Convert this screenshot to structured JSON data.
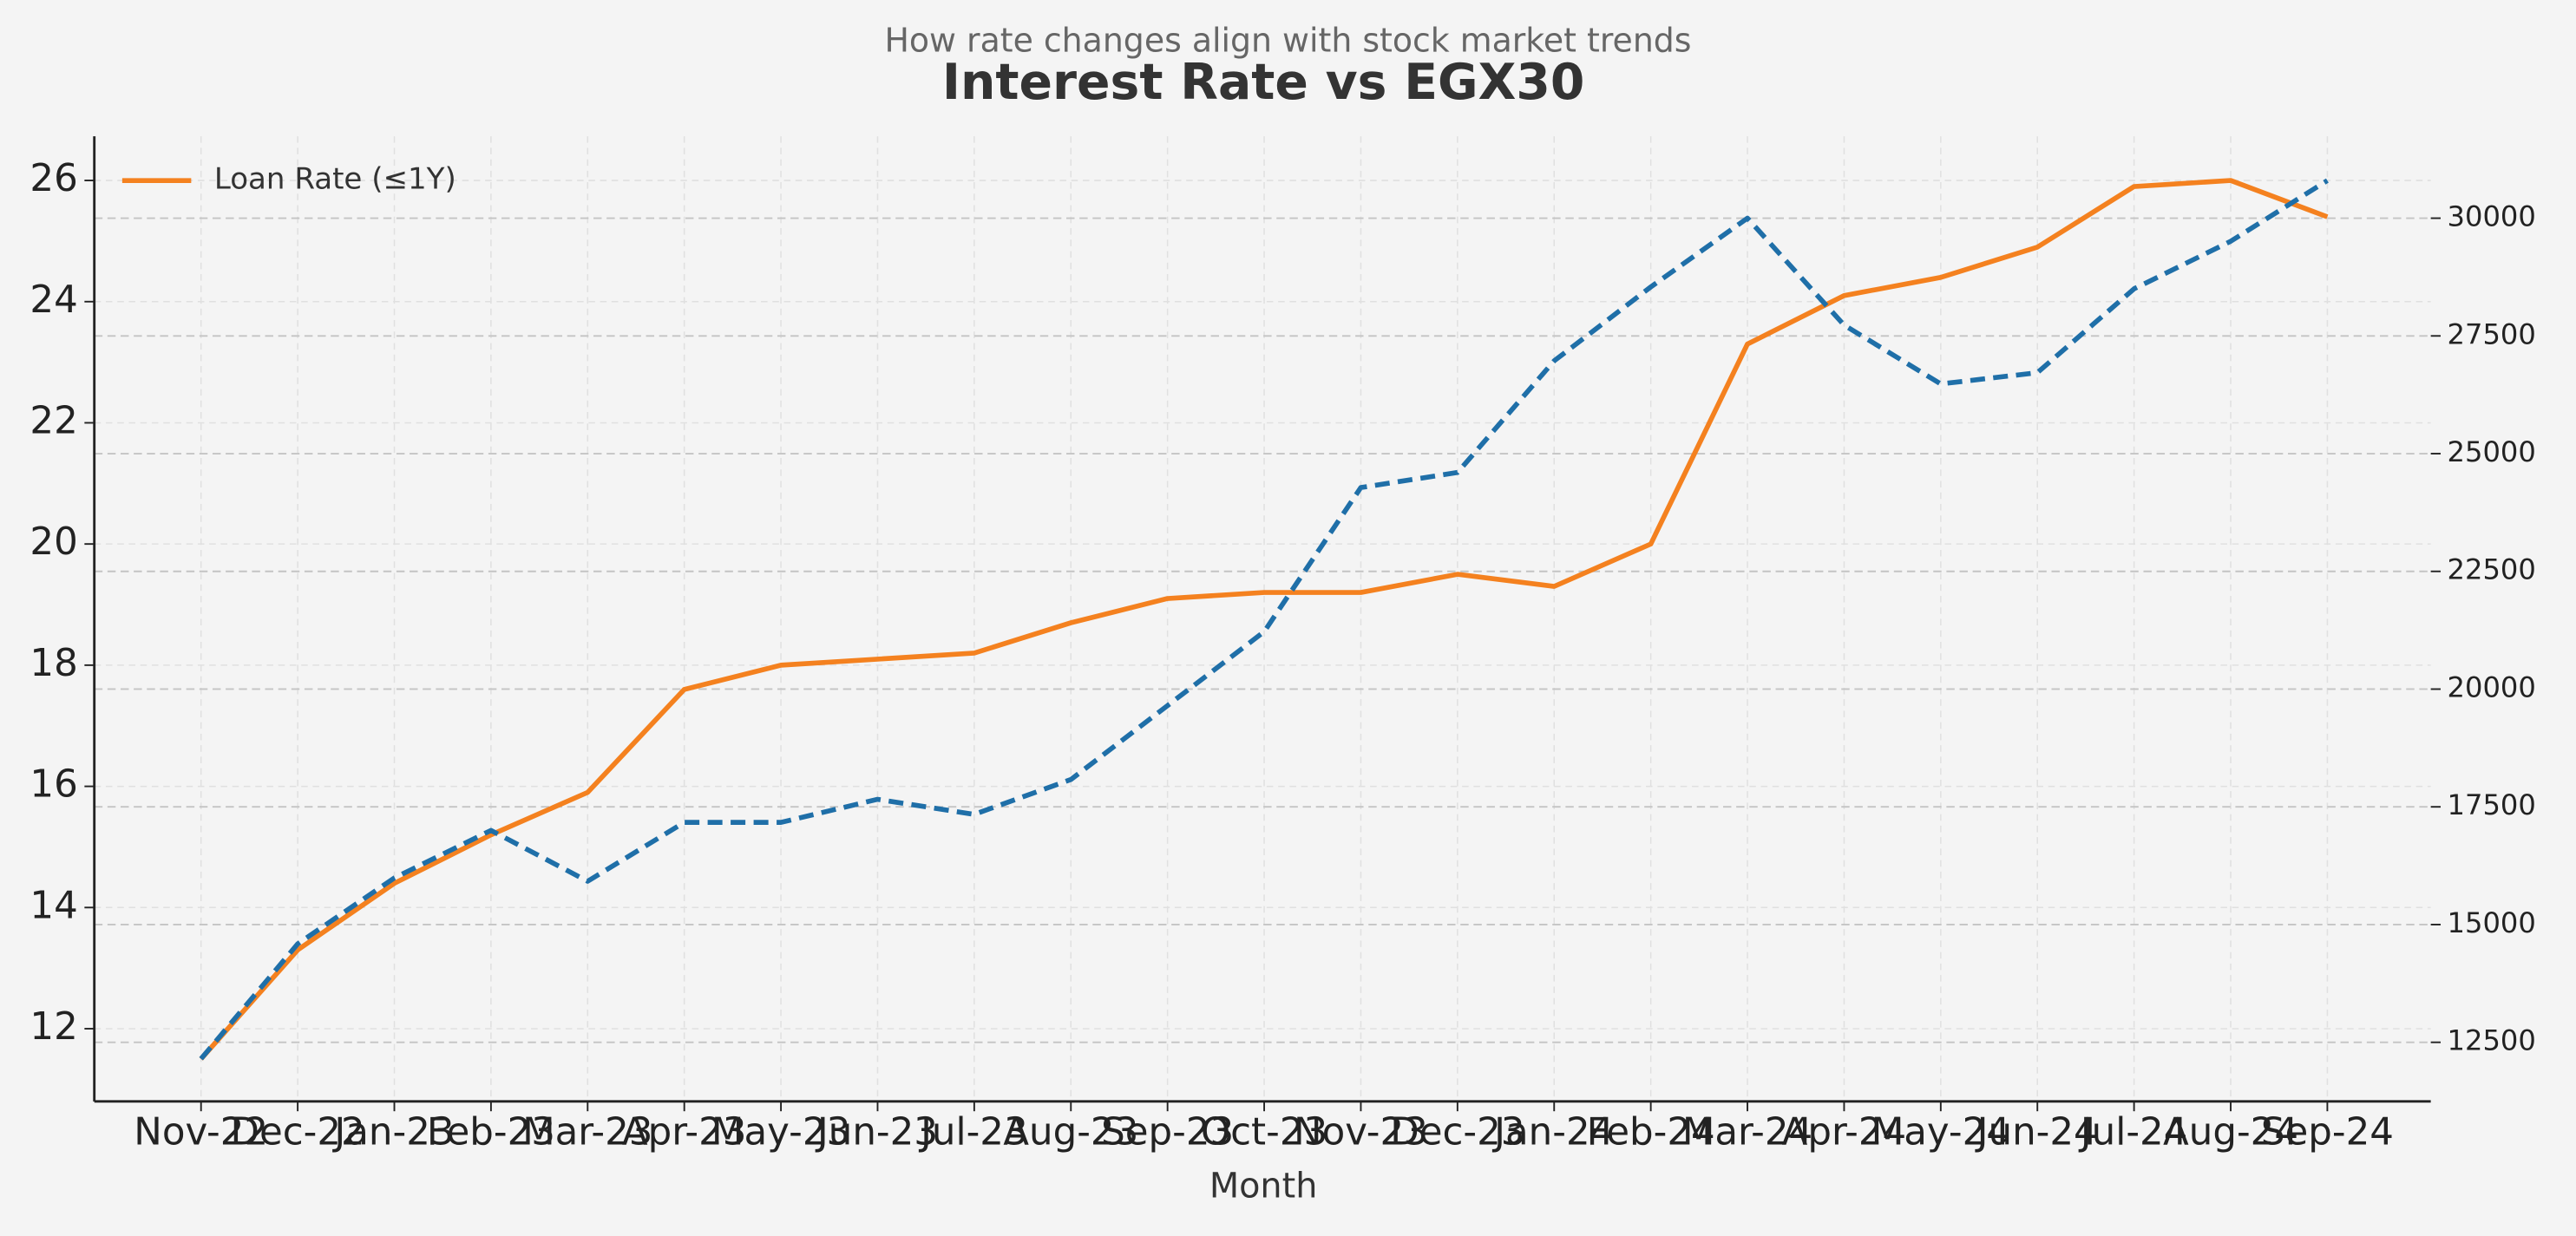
{
  "chart_data": {
    "type": "line",
    "title": "Interest Rate vs EGX30",
    "subtitle": "How rate changes align with stock market trends",
    "x_label": "Month",
    "categories": [
      "Nov-22",
      "Dec-22",
      "Jan-23",
      "Feb-23",
      "Mar-23",
      "Apr-23",
      "May-23",
      "Jun-23",
      "Jul-23",
      "Aug-23",
      "Sep-23",
      "Oct-23",
      "Nov-23",
      "Dec-23",
      "Jan-24",
      "Feb-24",
      "Mar-24",
      "Apr-24",
      "May-24",
      "Jun-24",
      "Jul-24",
      "Aug-24",
      "Sep-24"
    ],
    "series": [
      {
        "name": "Loan Rate (≤1Y)",
        "color": "#f4811f",
        "style": "solid",
        "values": [
          11.5,
          13.3,
          14.4,
          15.2,
          15.9,
          17.6,
          18.0,
          18.1,
          18.2,
          18.7,
          19.1,
          19.2,
          19.2,
          19.5,
          19.3,
          20.0,
          23.3,
          24.1,
          24.4,
          24.9,
          25.9,
          26.0,
          25.4
        ]
      },
      {
        "color": "#1f6fa8",
        "style": "dashed",
        "axis": "y2",
        "values": [
          12150,
          14590,
          15990,
          17000,
          15920,
          17170,
          17170,
          17660,
          17340,
          18080,
          19650,
          21220,
          24280,
          24600,
          26970,
          28540,
          30000,
          27730,
          26480,
          26720,
          28500,
          29510,
          30800
        ]
      }
    ],
    "ylim": [
      10.8,
      26.73
    ],
    "yticks": [
      12,
      14,
      16,
      18,
      20,
      22,
      24,
      26
    ],
    "y2lim": [
      11245,
      31740
    ],
    "y2ticks": [
      12500,
      15000,
      17500,
      20000,
      22500,
      25000,
      27500,
      30000
    ],
    "grid": true,
    "legend": "upper left"
  }
}
